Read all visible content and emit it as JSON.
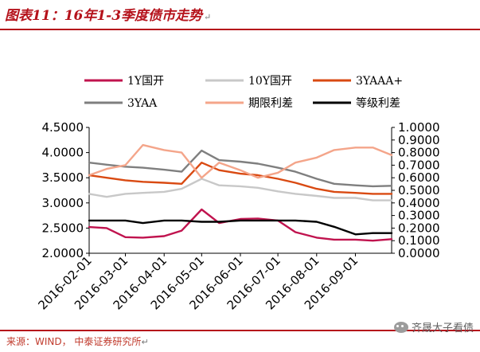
{
  "header": {
    "title": "图表11：16年1-3季度债市走势",
    "title_mark": "↵"
  },
  "footer": {
    "source": "来源：WIND， 中泰证券研究所",
    "source_mark": "↵"
  },
  "watermark": {
    "text": "齐晟大子看债"
  },
  "colors": {
    "title_red": "#b5121b",
    "s_1y": "#c0134e",
    "s_10y": "#c8c8c8",
    "s_3yaaa_plus": "#d94a12",
    "s_3yaa": "#7f7f7f",
    "s_term": "#f4a58a",
    "s_grade": "#000000"
  },
  "chart_data": {
    "type": "line",
    "x": [
      "2016-02-01",
      "2016-02-15",
      "2016-03-01",
      "2016-03-15",
      "2016-04-01",
      "2016-04-15",
      "2016-05-01",
      "2016-05-15",
      "2016-06-01",
      "2016-06-15",
      "2016-07-01",
      "2016-07-15",
      "2016-08-01",
      "2016-08-15",
      "2016-09-01",
      "2016-09-15",
      "2016-09-30"
    ],
    "x_tick_labels": [
      "2016-02-01",
      "2016-03-01",
      "2016-04-01",
      "2016-05-01",
      "2016-06-01",
      "2016-07-01",
      "2016-08-01",
      "2016-09-01"
    ],
    "y_left": {
      "min": 2.0,
      "max": 4.5,
      "ticks": [
        "2.0000",
        "2.5000",
        "3.0000",
        "3.5000",
        "4.0000",
        "4.5000"
      ]
    },
    "y_right": {
      "min": 0.0,
      "max": 1.0,
      "ticks": [
        "0.0000",
        "0.1000",
        "0.2000",
        "0.3000",
        "0.4000",
        "0.5000",
        "0.6000",
        "0.7000",
        "0.8000",
        "0.9000",
        "1.0000"
      ]
    },
    "legend_position": "top",
    "series": [
      {
        "name": "1Y国开",
        "axis": "left",
        "color_key": "s_1y",
        "values": [
          2.52,
          2.5,
          2.32,
          2.31,
          2.34,
          2.45,
          2.87,
          2.6,
          2.68,
          2.69,
          2.65,
          2.42,
          2.31,
          2.27,
          2.27,
          2.25,
          2.28
        ]
      },
      {
        "name": "10Y国开",
        "axis": "left",
        "color_key": "s_10y",
        "values": [
          3.18,
          3.12,
          3.18,
          3.2,
          3.22,
          3.28,
          3.48,
          3.35,
          3.33,
          3.3,
          3.23,
          3.18,
          3.14,
          3.1,
          3.1,
          3.05,
          3.05
        ]
      },
      {
        "name": "3YAAA+",
        "axis": "left",
        "color_key": "s_3yaaa_plus",
        "values": [
          3.55,
          3.5,
          3.45,
          3.42,
          3.4,
          3.38,
          3.8,
          3.65,
          3.58,
          3.55,
          3.48,
          3.4,
          3.28,
          3.22,
          3.2,
          3.18,
          3.18
        ]
      },
      {
        "name": "3YAA",
        "axis": "left",
        "color_key": "s_3yaa",
        "values": [
          3.8,
          3.76,
          3.72,
          3.7,
          3.66,
          3.62,
          4.04,
          3.85,
          3.82,
          3.78,
          3.7,
          3.62,
          3.48,
          3.38,
          3.35,
          3.33,
          3.34
        ]
      },
      {
        "name": "期限利差",
        "axis": "right",
        "color_key": "s_term",
        "values": [
          0.62,
          0.67,
          0.7,
          0.86,
          0.82,
          0.8,
          0.6,
          0.72,
          0.66,
          0.6,
          0.64,
          0.72,
          0.76,
          0.82,
          0.84,
          0.84,
          0.78
        ]
      },
      {
        "name": "等级利差",
        "axis": "right",
        "color_key": "s_grade",
        "values": [
          0.26,
          0.26,
          0.26,
          0.24,
          0.26,
          0.26,
          0.25,
          0.25,
          0.26,
          0.26,
          0.26,
          0.26,
          0.25,
          0.21,
          0.15,
          0.16,
          0.16
        ]
      }
    ]
  }
}
